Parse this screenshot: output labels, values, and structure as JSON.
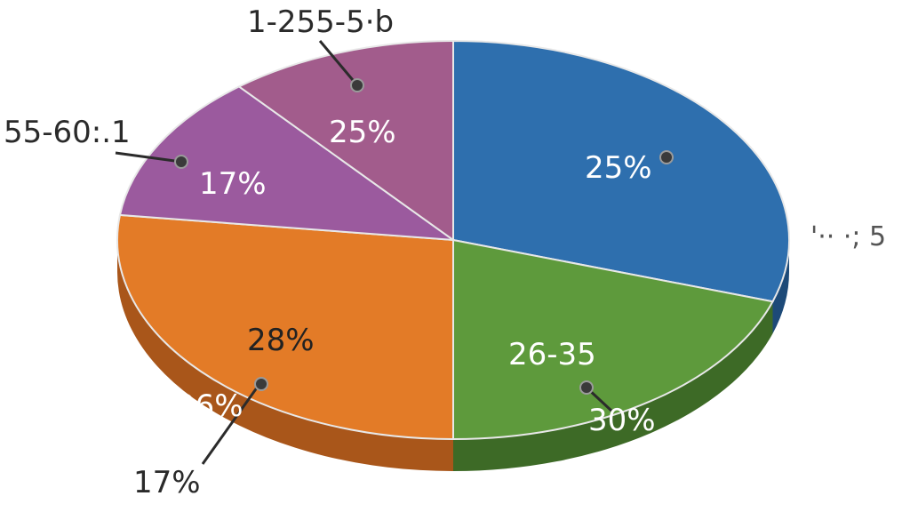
{
  "chart_data": {
    "type": "pie",
    "slices": [
      {
        "value": 30,
        "color": "#2e6fae",
        "side": "#1d4a78"
      },
      {
        "value": 20,
        "color": "#5e9a3c",
        "side": "#3d6a26"
      },
      {
        "value": 27,
        "color": "#e37b27",
        "side": "#a9561a"
      },
      {
        "value": 12,
        "color": "#9b5a9e",
        "side": "#6b3c6d"
      },
      {
        "value": 11,
        "color": "#a25c8c",
        "side": "#70405f"
      }
    ],
    "inside_labels": [
      "25%",
      "26-35",
      "30%",
      "28%",
      "26%",
      "17%",
      "25%"
    ],
    "outside_labels": [
      "1-255-5·b",
      "55-60:.1",
      "17%",
      "'·· ·; 5"
    ]
  }
}
